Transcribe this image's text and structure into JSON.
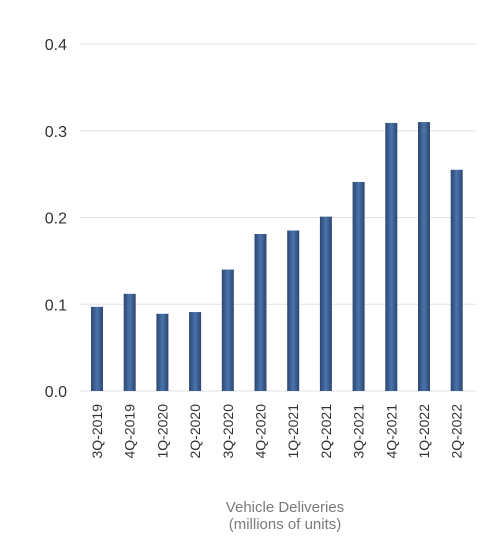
{
  "chart_data": {
    "type": "bar",
    "title": "",
    "xlabel": "",
    "ylabel": "",
    "caption": {
      "line1": "Vehicle Deliveries",
      "line2": "(millions of units)"
    },
    "categories": [
      "3Q-2019",
      "4Q-2019",
      "1Q-2020",
      "2Q-2020",
      "3Q-2020",
      "4Q-2020",
      "1Q-2021",
      "2Q-2021",
      "3Q-2021",
      "4Q-2021",
      "1Q-2022",
      "2Q-2022"
    ],
    "values": [
      0.097,
      0.112,
      0.089,
      0.091,
      0.14,
      0.181,
      0.185,
      0.201,
      0.241,
      0.309,
      0.31,
      0.255
    ],
    "ylim": [
      0,
      0.4
    ],
    "yticks": [
      "0.0",
      "0.1",
      "0.2",
      "0.3",
      "0.4"
    ],
    "grid": true,
    "legend": "none",
    "colors": {
      "bar_edge": "#2c4670",
      "bar_center": "#4a74ab",
      "grid": "#e2e2e2",
      "tick_label": "#333333",
      "caption": "#7a7a7a"
    }
  }
}
